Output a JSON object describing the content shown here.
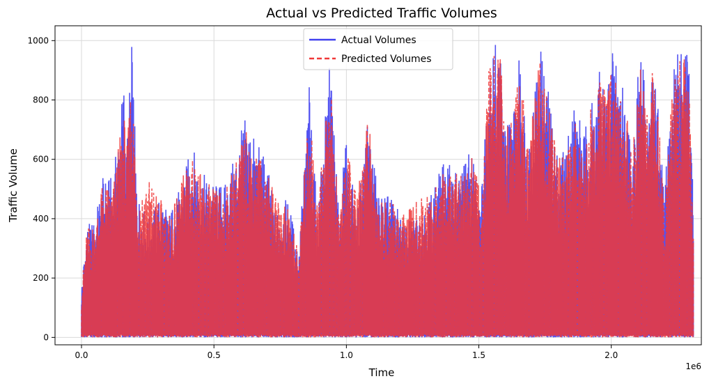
{
  "chart_data": {
    "type": "line",
    "title": "Actual vs Predicted Traffic Volumes",
    "xlabel": "Time",
    "ylabel": "Traffic Volume",
    "x_offset_label": "1e6",
    "xlim": [
      -0.1,
      2.34
    ],
    "ylim": [
      -25,
      1050
    ],
    "x_ticks": [
      0.0,
      0.5,
      1.0,
      1.5,
      2.0
    ],
    "x_tick_labels": [
      "0.0",
      "0.5",
      "1.0",
      "1.5",
      "2.0"
    ],
    "y_ticks": [
      0,
      200,
      400,
      600,
      800,
      1000
    ],
    "y_tick_labels": [
      "0",
      "200",
      "400",
      "600",
      "800",
      "1000"
    ],
    "grid": true,
    "legend": "upper center",
    "series": [
      {
        "name": "Actual Volumes",
        "color": "#4040f0",
        "style": "solid",
        "x": [
          0.0,
          0.02,
          0.05,
          0.08,
          0.12,
          0.16,
          0.17,
          0.19,
          0.21,
          0.25,
          0.3,
          0.33,
          0.37,
          0.4,
          0.42,
          0.45,
          0.5,
          0.55,
          0.6,
          0.62,
          0.65,
          0.7,
          0.73,
          0.78,
          0.82,
          0.86,
          0.89,
          0.94,
          0.97,
          1.0,
          1.04,
          1.08,
          1.12,
          1.17,
          1.22,
          1.27,
          1.32,
          1.37,
          1.42,
          1.47,
          1.51,
          1.54,
          1.56,
          1.58,
          1.6,
          1.63,
          1.66,
          1.68,
          1.7,
          1.73,
          1.76,
          1.8,
          1.83,
          1.86,
          1.9,
          1.93,
          1.96,
          1.98,
          2.0,
          2.02,
          2.05,
          2.08,
          2.11,
          2.14,
          2.16,
          2.2,
          2.24,
          2.27,
          2.29,
          2.31
        ],
        "y": [
          175,
          380,
          395,
          540,
          540,
          880,
          640,
          1000,
          490,
          400,
          480,
          420,
          500,
          600,
          645,
          560,
          520,
          520,
          690,
          750,
          680,
          600,
          430,
          470,
          290,
          860,
          420,
          960,
          430,
          670,
          400,
          760,
          490,
          480,
          380,
          420,
          490,
          600,
          560,
          640,
          500,
          1000,
          1000,
          1000,
          720,
          780,
          1000,
          650,
          760,
          1000,
          850,
          610,
          660,
          815,
          700,
          830,
          910,
          850,
          970,
          1000,
          830,
          640,
          1000,
          740,
          1000,
          480,
          980,
          1000,
          1000,
          460
        ]
      },
      {
        "name": "Predicted Volumes",
        "color": "#f03838",
        "style": "dashed",
        "x": [
          0.0,
          0.02,
          0.05,
          0.08,
          0.12,
          0.16,
          0.17,
          0.19,
          0.21,
          0.25,
          0.3,
          0.33,
          0.37,
          0.4,
          0.42,
          0.45,
          0.5,
          0.55,
          0.6,
          0.62,
          0.65,
          0.7,
          0.73,
          0.78,
          0.82,
          0.86,
          0.89,
          0.94,
          0.97,
          1.0,
          1.04,
          1.08,
          1.12,
          1.17,
          1.22,
          1.27,
          1.32,
          1.37,
          1.42,
          1.47,
          1.51,
          1.54,
          1.56,
          1.58,
          1.6,
          1.63,
          1.66,
          1.68,
          1.7,
          1.73,
          1.76,
          1.8,
          1.83,
          1.86,
          1.9,
          1.93,
          1.96,
          1.98,
          2.0,
          2.02,
          2.05,
          2.08,
          2.11,
          2.14,
          2.16,
          2.2,
          2.24,
          2.27,
          2.29,
          2.31
        ],
        "y": [
          165,
          370,
          390,
          520,
          520,
          780,
          620,
          940,
          480,
          550,
          470,
          410,
          490,
          640,
          610,
          550,
          500,
          510,
          650,
          700,
          650,
          580,
          470,
          460,
          280,
          800,
          470,
          900,
          420,
          640,
          480,
          750,
          470,
          460,
          410,
          470,
          480,
          560,
          550,
          620,
          490,
          940,
          950,
          960,
          700,
          760,
          960,
          630,
          740,
          960,
          820,
          600,
          640,
          780,
          680,
          800,
          880,
          820,
          930,
          960,
          800,
          620,
          950,
          720,
          950,
          470,
          940,
          950,
          920,
          460
        ]
      }
    ]
  }
}
